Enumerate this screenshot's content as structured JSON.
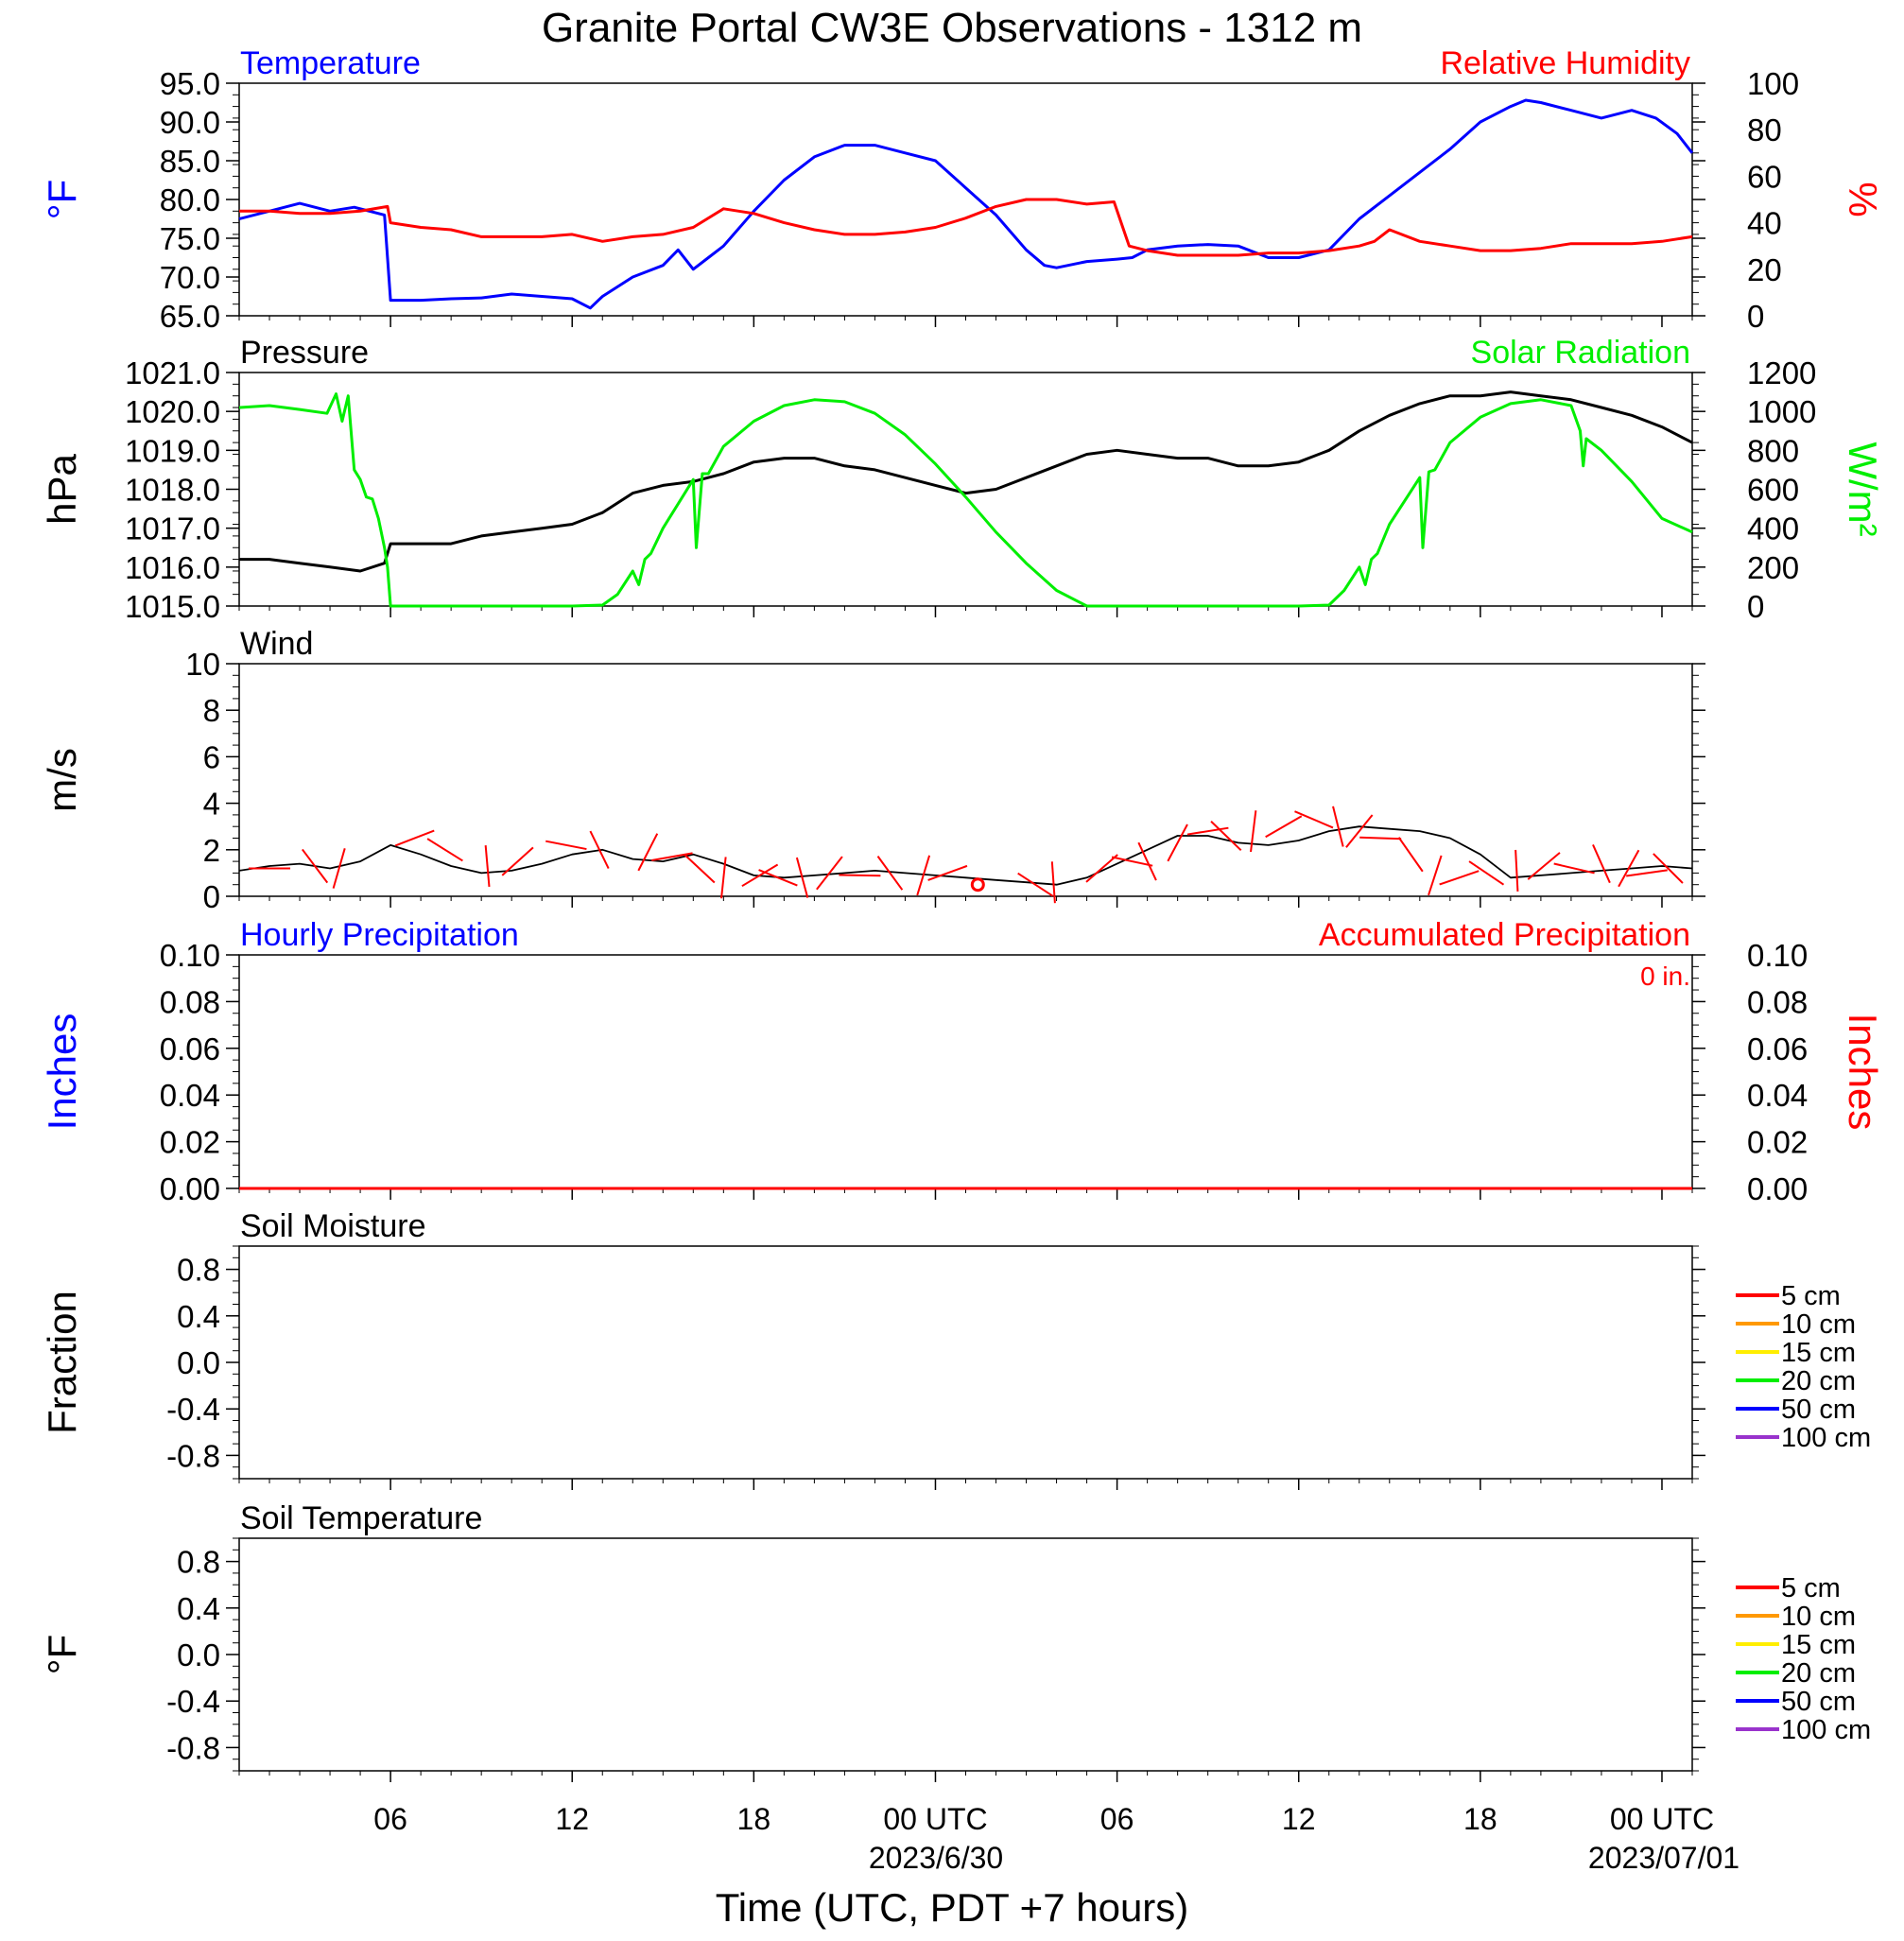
{
  "title": "Granite Portal CW3E Observations - 1312 m",
  "xaxis": {
    "ticks": [
      "06",
      "12",
      "18",
      "00 UTC",
      "06",
      "12",
      "18",
      "00 UTC"
    ],
    "dates": [
      "2023/6/30",
      "2023/07/01"
    ],
    "label": "Time (UTC, PDT +7 hours)"
  },
  "colors": {
    "temperature": "#0000ff",
    "humidity": "#ff0000",
    "pressure": "#000000",
    "solar": "#00ee00",
    "wind_speed": "#000000",
    "wind_barb": "#ff0000",
    "soil_5": "#ff0000",
    "soil_10": "#ff9900",
    "soil_15": "#ffee00",
    "soil_20": "#00ee00",
    "soil_50": "#0000ff",
    "soil_100": "#9933cc"
  },
  "chart_data": [
    {
      "type": "line",
      "panel": "temperature",
      "title_left": "Temperature",
      "title_right": "Relative Humidity",
      "ylabel_left": "°F",
      "ylabel_right": "%",
      "ylim_left": [
        65,
        95
      ],
      "ylim_right": [
        0,
        100
      ],
      "yticks_left": [
        "95.0",
        "90.0",
        "85.0",
        "80.0",
        "75.0",
        "70.0",
        "65.0"
      ],
      "yticks_right": [
        "100",
        "80",
        "60",
        "40",
        "20",
        "0"
      ],
      "xlim": [
        1,
        49
      ],
      "series": [
        {
          "name": "Temperature",
          "axis": "left",
          "x": [
            1,
            2,
            3,
            4,
            4.8,
            5.8,
            6.0,
            7,
            8,
            9,
            10,
            11,
            12,
            12.6,
            13,
            14,
            15,
            15.5,
            16,
            16.5,
            17,
            18,
            19,
            20,
            21,
            22,
            23,
            24,
            25,
            26,
            27,
            27.6,
            28,
            29,
            30,
            30.5,
            31,
            32,
            33,
            34,
            35,
            36,
            37,
            38,
            39,
            40,
            41,
            42,
            43,
            43.5,
            44,
            45,
            46,
            47,
            47.8,
            48.5,
            49
          ],
          "y": [
            77.5,
            78.5,
            79.5,
            78.5,
            79.0,
            78.0,
            67.0,
            67.0,
            67.2,
            67.3,
            67.8,
            67.5,
            67.2,
            66.0,
            67.5,
            70.0,
            71.5,
            73.5,
            71.0,
            72.5,
            74.0,
            78.5,
            82.5,
            85.5,
            87.0,
            87.0,
            86.0,
            85.0,
            81.5,
            78.0,
            73.5,
            71.5,
            71.2,
            72.0,
            72.3,
            72.5,
            73.5,
            74.0,
            74.2,
            74.0,
            72.5,
            72.5,
            73.5,
            77.5,
            80.5,
            83.5,
            86.5,
            90.0,
            92.0,
            92.8,
            92.5,
            91.5,
            90.5,
            91.5,
            90.5,
            88.5,
            86.0
          ]
        },
        {
          "name": "Relative Humidity",
          "axis": "right",
          "x": [
            1,
            2,
            3,
            4,
            5,
            5.9,
            6.0,
            7,
            8,
            9,
            10,
            11,
            12,
            13,
            14,
            15,
            16,
            17,
            18,
            19,
            20,
            21,
            22,
            23,
            24,
            25,
            26,
            27,
            28,
            29,
            29.9,
            30.4,
            31,
            32,
            33,
            34,
            35,
            36,
            37,
            38,
            38.5,
            39,
            40,
            41,
            42,
            43,
            44,
            45,
            46,
            47,
            48,
            48.5,
            49
          ],
          "y": [
            45,
            45,
            44,
            44,
            45,
            47,
            40,
            38,
            37,
            34,
            34,
            34,
            35,
            32,
            34,
            35,
            38,
            46,
            44,
            40,
            37,
            35,
            35,
            36,
            38,
            42,
            47,
            50,
            50,
            48,
            49,
            30,
            28,
            26,
            26,
            26,
            27,
            27,
            28,
            30,
            32,
            37,
            32,
            30,
            28,
            28,
            29,
            31,
            31,
            31,
            32,
            33,
            34
          ]
        }
      ]
    },
    {
      "type": "line",
      "panel": "pressure",
      "title_left": "Pressure",
      "title_right": "Solar Radiation",
      "ylabel_left": "hPa",
      "ylabel_right": "W/m²",
      "ylim_left": [
        1015,
        1021
      ],
      "ylim_right": [
        0,
        1200
      ],
      "yticks_left": [
        "1021.0",
        "1020.0",
        "1019.0",
        "1018.0",
        "1017.0",
        "1016.0",
        "1015.0"
      ],
      "yticks_right": [
        "1200",
        "1000",
        "800",
        "600",
        "400",
        "200",
        "0"
      ],
      "xlim": [
        1,
        49
      ],
      "series": [
        {
          "name": "Pressure",
          "axis": "left",
          "x": [
            1,
            2,
            3,
            4,
            5,
            5.8,
            6,
            7,
            8,
            9,
            10,
            11,
            12,
            13,
            14,
            15,
            16,
            17,
            18,
            19,
            20,
            21,
            22,
            23,
            24,
            25,
            26,
            27,
            28,
            29,
            30,
            31,
            32,
            33,
            34,
            35,
            36,
            37,
            38,
            39,
            40,
            41,
            42,
            43,
            44,
            45,
            46,
            47,
            48,
            49
          ],
          "y": [
            1016.2,
            1016.2,
            1016.1,
            1016.0,
            1015.9,
            1016.1,
            1016.6,
            1016.6,
            1016.6,
            1016.8,
            1016.9,
            1017.0,
            1017.1,
            1017.4,
            1017.9,
            1018.1,
            1018.2,
            1018.4,
            1018.7,
            1018.8,
            1018.8,
            1018.6,
            1018.5,
            1018.3,
            1018.1,
            1017.9,
            1018.0,
            1018.3,
            1018.6,
            1018.9,
            1019.0,
            1018.9,
            1018.8,
            1018.8,
            1018.6,
            1018.6,
            1018.7,
            1019.0,
            1019.5,
            1019.9,
            1020.2,
            1020.4,
            1020.4,
            1020.5,
            1020.4,
            1020.3,
            1020.1,
            1019.9,
            1019.6,
            1019.2
          ]
        },
        {
          "name": "Solar Radiation",
          "axis": "right",
          "x": [
            1,
            2,
            3,
            3.9,
            4.2,
            4.4,
            4.6,
            4.8,
            5.0,
            5.2,
            5.4,
            5.6,
            5.8,
            5.9,
            6.0,
            8,
            10,
            12,
            13.0,
            13.5,
            14.0,
            14.2,
            14.4,
            14.6,
            15,
            16,
            16.1,
            16.3,
            16.5,
            17,
            18,
            19,
            20,
            21,
            22,
            23,
            24,
            25,
            26,
            27,
            28,
            29,
            30,
            32,
            34,
            36,
            37.0,
            37.5,
            38.0,
            38.2,
            38.4,
            38.6,
            39,
            40,
            40.1,
            40.3,
            40.5,
            41,
            42,
            43,
            44,
            45,
            45.3,
            45.4,
            45.5,
            46,
            47,
            48,
            49
          ],
          "y": [
            1020,
            1030,
            1010,
            990,
            1090,
            950,
            1080,
            700,
            650,
            560,
            550,
            450,
            300,
            200,
            0,
            0,
            0,
            0,
            5,
            60,
            180,
            110,
            240,
            270,
            400,
            650,
            300,
            680,
            680,
            820,
            950,
            1030,
            1060,
            1050,
            990,
            880,
            730,
            560,
            380,
            220,
            80,
            0,
            0,
            0,
            0,
            0,
            5,
            80,
            200,
            110,
            240,
            270,
            420,
            660,
            300,
            690,
            700,
            840,
            970,
            1040,
            1060,
            1030,
            900,
            720,
            860,
            800,
            640,
            450,
            380
          ]
        }
      ]
    },
    {
      "type": "line",
      "panel": "wind",
      "title_left": "Wind",
      "ylabel_left": "m/s",
      "ylim_left": [
        0,
        10
      ],
      "yticks_left": [
        "10",
        "8",
        "6",
        "4",
        "2",
        "0"
      ],
      "xlim": [
        1,
        49
      ],
      "series": [
        {
          "name": "Wind speed",
          "axis": "left",
          "x": [
            1,
            2,
            3,
            4,
            5,
            6,
            7,
            8,
            9,
            10,
            11,
            12,
            13,
            14,
            15,
            16,
            17,
            18,
            19,
            20,
            21,
            22,
            23,
            24,
            25,
            26,
            27,
            28,
            29,
            30,
            31,
            32,
            33,
            34,
            35,
            36,
            37,
            38,
            39,
            40,
            41,
            42,
            43,
            44,
            45,
            46,
            47,
            48,
            49
          ],
          "y": [
            1.1,
            1.3,
            1.4,
            1.2,
            1.5,
            2.2,
            1.8,
            1.3,
            1.0,
            1.1,
            1.4,
            1.8,
            2.0,
            1.6,
            1.5,
            1.8,
            1.4,
            0.9,
            0.8,
            0.9,
            1.0,
            1.1,
            1.0,
            0.9,
            0.8,
            0.7,
            0.6,
            0.5,
            0.8,
            1.4,
            2.0,
            2.6,
            2.6,
            2.3,
            2.2,
            2.4,
            2.8,
            3.0,
            2.9,
            2.8,
            2.5,
            1.8,
            0.8,
            0.9,
            1.0,
            1.1,
            1.2,
            1.3,
            1.2
          ]
        }
      ],
      "barbs": {
        "x": [
          2,
          3.5,
          4.3,
          6.8,
          7.8,
          9.2,
          10.2,
          11.8,
          12.9,
          14.5,
          15.3,
          16.2,
          17.0,
          18.2,
          18.8,
          19.6,
          20.5,
          21.5,
          22.5,
          23.6,
          24.4,
          27.3,
          27.9,
          29.5,
          30.5,
          31.0,
          32.0,
          33.0,
          33.6,
          34.5,
          35.5,
          36.5,
          37.3,
          38.0,
          38.7,
          39.7,
          40.5,
          41.3,
          42.2,
          43.2,
          44.1,
          45.1,
          46.0,
          46.9,
          47.5,
          48.2
        ],
        "speed": [
          1.2,
          1.3,
          1.2,
          2.5,
          2.0,
          1.3,
          1.5,
          2.2,
          2.0,
          1.9,
          1.7,
          1.2,
          0.8,
          0.9,
          0.8,
          0.8,
          1.0,
          0.9,
          1.0,
          0.9,
          1.0,
          0.5,
          0.6,
          1.2,
          1.5,
          1.5,
          2.3,
          2.8,
          2.6,
          2.8,
          3.0,
          3.3,
          3.0,
          2.8,
          2.5,
          1.8,
          0.9,
          0.8,
          1.0,
          1.1,
          1.3,
          1.2,
          1.4,
          1.2,
          1.0,
          1.2
        ],
        "calm_x": 25.4
      }
    },
    {
      "type": "line",
      "panel": "precipitation",
      "title_left": "Hourly Precipitation",
      "title_right": "Accumulated Precipitation",
      "annotation": "0 in.",
      "ylabel_left": "Inches",
      "ylabel_right": "Inches",
      "ylim_left": [
        0,
        0.1
      ],
      "ylim_right": [
        0,
        0.1
      ],
      "yticks_left": [
        "0.10",
        "0.08",
        "0.06",
        "0.04",
        "0.02",
        "0.00"
      ],
      "yticks_right": [
        "0.10",
        "0.08",
        "0.06",
        "0.04",
        "0.02",
        "0.00"
      ],
      "xlim": [
        1,
        49
      ],
      "series": [
        {
          "name": "Hourly Precipitation",
          "axis": "left",
          "x": [
            1,
            49
          ],
          "y": [
            0,
            0
          ]
        },
        {
          "name": "Accumulated Precipitation",
          "axis": "right",
          "x": [
            1,
            49
          ],
          "y": [
            0,
            0
          ]
        }
      ]
    },
    {
      "type": "line",
      "panel": "soil_moisture",
      "title_left": "Soil Moisture",
      "ylabel_left": "Fraction",
      "ylim_left": [
        -1,
        1
      ],
      "yticks_left": [
        "0.8",
        "0.4",
        "0.0",
        "-0.4",
        "-0.8"
      ],
      "xlim": [
        1,
        49
      ],
      "series": [],
      "legend": [
        "5 cm",
        "10 cm",
        "15 cm",
        "20 cm",
        "50 cm",
        "100 cm"
      ]
    },
    {
      "type": "line",
      "panel": "soil_temperature",
      "title_left": "Soil Temperature",
      "ylabel_left": "°F",
      "ylim_left": [
        -1,
        1
      ],
      "yticks_left": [
        "0.8",
        "0.4",
        "0.0",
        "-0.4",
        "-0.8"
      ],
      "xlim": [
        1,
        49
      ],
      "series": [],
      "legend": [
        "5 cm",
        "10 cm",
        "15 cm",
        "20 cm",
        "50 cm",
        "100 cm"
      ]
    }
  ]
}
